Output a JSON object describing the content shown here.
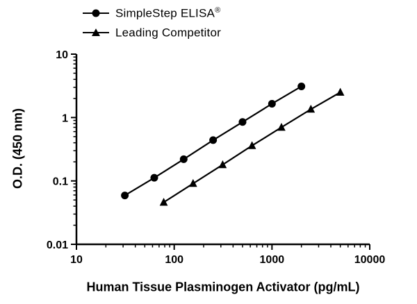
{
  "chart_data": {
    "type": "line",
    "title": "",
    "xlabel": "Human Tissue Plasminogen Activator (pg/mL)",
    "ylabel": "O.D. (450 nm)",
    "x_scale": "log",
    "y_scale": "log",
    "xlim": [
      10,
      10000
    ],
    "ylim": [
      0.01,
      10
    ],
    "x_ticks": [
      10,
      100,
      1000,
      10000
    ],
    "x_tick_labels": [
      "10",
      "100",
      "1000",
      "10000"
    ],
    "y_ticks": [
      0.01,
      0.1,
      1,
      10
    ],
    "y_tick_labels": [
      "0.01",
      "0.1",
      "1",
      "10"
    ],
    "grid": false,
    "legend_position": "top",
    "line_color": "#000000",
    "series": [
      {
        "name": "SimpleStep ELISA",
        "name_suffix": "®",
        "marker": "circle",
        "color": "#000000",
        "x": [
          31.25,
          62.5,
          125,
          250,
          500,
          1000,
          2000
        ],
        "y": [
          0.059,
          0.112,
          0.22,
          0.44,
          0.85,
          1.65,
          3.1
        ]
      },
      {
        "name": "Leading Competitor",
        "name_suffix": "",
        "marker": "triangle",
        "color": "#000000",
        "x": [
          78.1,
          156,
          313,
          625,
          1250,
          2500,
          5000
        ],
        "y": [
          0.046,
          0.091,
          0.18,
          0.36,
          0.7,
          1.35,
          2.5
        ]
      }
    ]
  }
}
